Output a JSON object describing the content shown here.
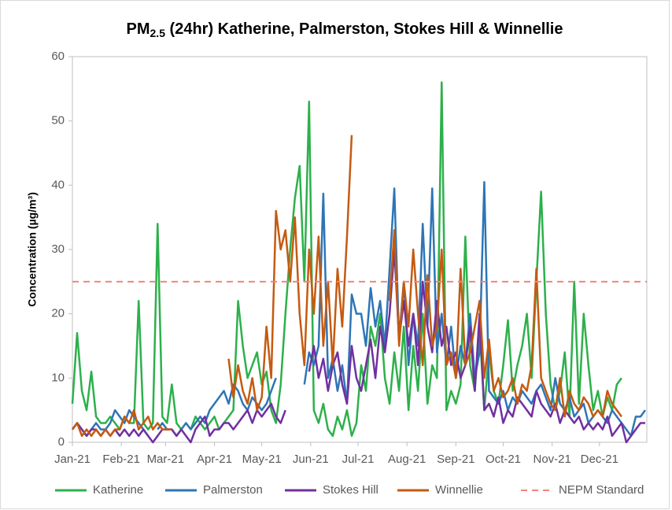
{
  "chart_data": {
    "type": "line",
    "title": {
      "before": "PM",
      "subscript": "2.5",
      "after": " (24hr) Katherine, Palmerston, Stokes Hill & Winnellie"
    },
    "y_label": "Concentration (µg/m³)",
    "xlim": [
      0,
      364
    ],
    "xticks": [
      {
        "value": 0,
        "label": "Jan-21"
      },
      {
        "value": 31,
        "label": "Feb-21"
      },
      {
        "value": 59,
        "label": "Mar-21"
      },
      {
        "value": 90,
        "label": "Apr-21"
      },
      {
        "value": 120,
        "label": "May-21"
      },
      {
        "value": 151,
        "label": "Jun-21"
      },
      {
        "value": 181,
        "label": "Jul-21"
      },
      {
        "value": 212,
        "label": "Aug-21"
      },
      {
        "value": 243,
        "label": "Sep-21"
      },
      {
        "value": 273,
        "label": "Oct-21"
      },
      {
        "value": 304,
        "label": "Nov-21"
      },
      {
        "value": 334,
        "label": "Dec-21"
      }
    ],
    "ylim": [
      0,
      60
    ],
    "yticks": [
      0,
      10,
      20,
      30,
      40,
      50,
      60
    ],
    "grid": false,
    "legend": "bottom",
    "x": [
      0,
      3,
      6,
      9,
      12,
      15,
      18,
      21,
      24,
      27,
      30,
      33,
      36,
      39,
      42,
      45,
      48,
      51,
      54,
      57,
      60,
      63,
      66,
      69,
      72,
      75,
      78,
      81,
      84,
      87,
      90,
      93,
      96,
      99,
      102,
      105,
      108,
      111,
      114,
      117,
      120,
      123,
      126,
      129,
      132,
      135,
      138,
      141,
      144,
      147,
      150,
      153,
      156,
      159,
      162,
      165,
      168,
      171,
      174,
      177,
      180,
      183,
      186,
      189,
      192,
      195,
      198,
      201,
      204,
      207,
      210,
      213,
      216,
      219,
      222,
      225,
      228,
      231,
      234,
      237,
      240,
      243,
      246,
      249,
      252,
      255,
      258,
      261,
      264,
      267,
      270,
      273,
      276,
      279,
      282,
      285,
      288,
      291,
      294,
      297,
      300,
      303,
      306,
      309,
      312,
      315,
      318,
      321,
      324,
      327,
      330,
      333,
      336,
      339,
      342,
      345,
      348,
      351,
      354,
      357,
      360,
      363
    ],
    "series": [
      {
        "name": "Katherine",
        "color": "#2db04b",
        "values": [
          6,
          17,
          8,
          5,
          11,
          4,
          3,
          3,
          4,
          3,
          2,
          4,
          3,
          3,
          22,
          3,
          2,
          3,
          34,
          4,
          3,
          9,
          3,
          2,
          null,
          2,
          4,
          3,
          2,
          3,
          4,
          2,
          3,
          4,
          5,
          22,
          15,
          10,
          12,
          14,
          9,
          11,
          5,
          3,
          9,
          20,
          30,
          38,
          43,
          25,
          53,
          5,
          3,
          6,
          2,
          1,
          4,
          2,
          5,
          1,
          3,
          12,
          8,
          18,
          15,
          20,
          10,
          6,
          14,
          8,
          18,
          5,
          15,
          8,
          20,
          6,
          12,
          10,
          56,
          5,
          8,
          6,
          9,
          32,
          12,
          8,
          18,
          5,
          14,
          8,
          6,
          12,
          19,
          8,
          12,
          15,
          20,
          10,
          25,
          39,
          20,
          9,
          5,
          8,
          14,
          4,
          25,
          6,
          20,
          12,
          5,
          8,
          4,
          7,
          5,
          9,
          10,
          null,
          null,
          null,
          null,
          null
        ]
      },
      {
        "name": "Palmerston",
        "color": "#2e75b6",
        "values": [
          2,
          3,
          2,
          1,
          2,
          3,
          2,
          2,
          3,
          5,
          4,
          3,
          5,
          4,
          3,
          2,
          1,
          null,
          2,
          3,
          2,
          2,
          1,
          2,
          3,
          2,
          3,
          4,
          3,
          5,
          6,
          7,
          8,
          6,
          9,
          8,
          6,
          5,
          7,
          6,
          5,
          6,
          8,
          10,
          null,
          null,
          null,
          null,
          null,
          9,
          14,
          12,
          15,
          38.7,
          10,
          13,
          8,
          12,
          6,
          23,
          20,
          20,
          15,
          24,
          18,
          22,
          15,
          27,
          39.5,
          16,
          25,
          12,
          20,
          15,
          34,
          18,
          39.5,
          14,
          20,
          12,
          18,
          10,
          15,
          12,
          20,
          10,
          14,
          40.5,
          8,
          7,
          6,
          8,
          5,
          7,
          6,
          8,
          7,
          6,
          8,
          9,
          7,
          5,
          10,
          6,
          5,
          7,
          4,
          5,
          6,
          3,
          4,
          5,
          4,
          3,
          5,
          4,
          3,
          2,
          1,
          4,
          4,
          5
        ]
      },
      {
        "name": "Stokes Hill",
        "color": "#7030a0",
        "values": [
          2,
          3,
          2,
          1,
          2,
          2,
          1,
          2,
          1,
          2,
          1,
          2,
          1,
          2,
          1,
          2,
          1,
          0,
          1,
          2,
          2,
          2,
          1,
          2,
          1,
          0,
          2,
          3,
          4,
          1,
          2,
          2,
          3,
          3,
          2,
          3,
          4,
          5,
          3,
          5,
          4,
          5,
          6,
          4,
          3,
          5,
          null,
          null,
          null,
          null,
          11,
          15,
          10,
          13,
          8,
          12,
          14,
          9,
          6,
          15,
          10,
          8,
          12,
          16,
          10,
          18,
          14,
          20,
          30,
          16,
          22,
          15,
          20,
          12,
          25,
          18,
          14,
          22,
          15,
          18,
          12,
          14,
          10,
          12,
          18,
          8,
          20,
          5,
          6,
          4,
          7,
          3,
          5,
          4,
          7,
          6,
          5,
          4,
          8,
          6,
          5,
          4,
          6,
          3,
          5,
          4,
          3,
          4,
          2,
          3,
          2,
          3,
          2,
          4,
          1,
          2,
          3,
          0,
          1,
          2,
          3,
          3
        ]
      },
      {
        "name": "Winnellie",
        "color": "#c55a11",
        "values": [
          2,
          3,
          1,
          2,
          1,
          2,
          1,
          2,
          1,
          2,
          2,
          4,
          3,
          5,
          2,
          3,
          4,
          2,
          3,
          2,
          2,
          2,
          null,
          null,
          null,
          null,
          null,
          null,
          null,
          null,
          null,
          null,
          null,
          13,
          7,
          12,
          8,
          6,
          10,
          5,
          7,
          18,
          10,
          36,
          30,
          33,
          25,
          35,
          20,
          12,
          30,
          20,
          32,
          15,
          25,
          12,
          27,
          18,
          32,
          47.8,
          null,
          null,
          null,
          null,
          null,
          null,
          null,
          22,
          33,
          15,
          25,
          18,
          30,
          20,
          12,
          26,
          15,
          18,
          30,
          12,
          14,
          10,
          27,
          12,
          14,
          18,
          22,
          10,
          16,
          8,
          10,
          7,
          8,
          10,
          6,
          9,
          8,
          12,
          27,
          10,
          8,
          6,
          5,
          10,
          4,
          8,
          6,
          5,
          7,
          6,
          4,
          5,
          4,
          8,
          6,
          5,
          4,
          null,
          null,
          null,
          null,
          null
        ]
      }
    ],
    "reference_line": {
      "name": "NEPM Standard",
      "value": 25,
      "color": "#f4837d"
    }
  }
}
